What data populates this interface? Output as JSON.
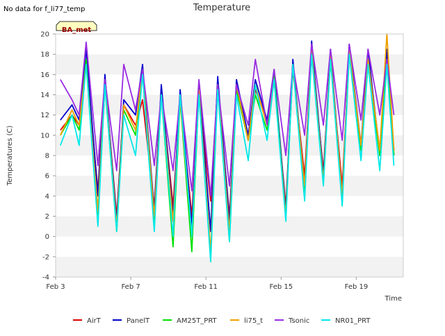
{
  "note": "No data for f_li77_temp",
  "site_tag": "BA_met",
  "chart_data": {
    "type": "line",
    "title": "Temperature",
    "xlabel": "Time",
    "ylabel": "Temperatures (C)",
    "ylim": [
      -4,
      20
    ],
    "yticks": [
      -4,
      -2,
      0,
      2,
      4,
      6,
      8,
      10,
      12,
      14,
      16,
      18,
      20
    ],
    "xlim": [
      "2023-02-03",
      "2023-02-21"
    ],
    "xticks": [
      {
        "date": "2023-02-03",
        "label": "Feb 3"
      },
      {
        "date": "2023-02-07",
        "label": "Feb 7"
      },
      {
        "date": "2023-02-11",
        "label": "Feb 11"
      },
      {
        "date": "2023-02-15",
        "label": "Feb 15"
      },
      {
        "date": "2023-02-19",
        "label": "Feb 19"
      }
    ],
    "grid": "horizontal alternating bands",
    "legend_position": "bottom",
    "x": [
      "2023-02-03 06:00",
      "2023-02-03 21:00",
      "2023-02-04 06:00",
      "2023-02-04 15:00",
      "2023-02-05 06:00",
      "2023-02-05 15:00",
      "2023-02-06 06:00",
      "2023-02-06 15:00",
      "2023-02-07 06:00",
      "2023-02-07 15:00",
      "2023-02-08 06:00",
      "2023-02-08 15:00",
      "2023-02-09 06:00",
      "2023-02-09 15:00",
      "2023-02-10 06:00",
      "2023-02-10 15:00",
      "2023-02-11 06:00",
      "2023-02-11 15:00",
      "2023-02-12 06:00",
      "2023-02-12 15:00",
      "2023-02-13 06:00",
      "2023-02-13 15:00",
      "2023-02-14 06:00",
      "2023-02-14 15:00",
      "2023-02-15 06:00",
      "2023-02-15 15:00",
      "2023-02-16 06:00",
      "2023-02-16 15:00",
      "2023-02-17 06:00",
      "2023-02-17 15:00",
      "2023-02-18 06:00",
      "2023-02-18 15:00",
      "2023-02-19 06:00",
      "2023-02-19 15:00",
      "2023-02-20 06:00",
      "2023-02-20 15:00",
      "2023-02-21 00:00"
    ],
    "series": [
      {
        "name": "AirT",
        "color": "#e00000",
        "values": [
          10.5,
          12.0,
          11.0,
          17.5,
          4.5,
          15.5,
          2.0,
          13.0,
          11.0,
          13.5,
          3.0,
          14.5,
          3.0,
          13.5,
          2.0,
          14.0,
          3.5,
          15.0,
          2.0,
          14.5,
          9.5,
          14.5,
          11.5,
          15.5,
          3.0,
          16.5,
          6.0,
          18.0,
          6.5,
          17.5,
          5.0,
          18.0,
          9.0,
          17.5,
          8.5,
          17.5,
          8.5
        ]
      },
      {
        "name": "PanelT",
        "color": "#0000cc",
        "values": [
          11.5,
          13.0,
          11.5,
          18.5,
          4.0,
          16.0,
          1.5,
          13.5,
          12.0,
          17.0,
          2.5,
          15.0,
          2.0,
          14.5,
          1.0,
          15.0,
          0.5,
          15.8,
          1.5,
          15.5,
          10.0,
          15.5,
          11.5,
          16.5,
          2.5,
          17.5,
          5.0,
          19.3,
          6.0,
          18.5,
          4.0,
          19.0,
          9.0,
          18.5,
          8.0,
          18.5,
          8.0
        ]
      },
      {
        "name": "AM25T_PRT",
        "color": "#00e000",
        "values": [
          10.0,
          12.0,
          10.5,
          17.5,
          1.5,
          15.0,
          0.5,
          12.5,
          10.0,
          16.5,
          1.5,
          14.0,
          -1.0,
          13.5,
          -1.5,
          14.5,
          -2.0,
          15.0,
          -0.5,
          14.5,
          9.5,
          14.0,
          10.5,
          16.0,
          2.0,
          17.0,
          4.0,
          18.5,
          5.5,
          17.5,
          3.5,
          18.5,
          8.5,
          17.0,
          8.0,
          17.5,
          8.0
        ]
      },
      {
        "name": "li75_t",
        "color": "#f0a000",
        "values": [
          10.0,
          12.5,
          11.0,
          17.0,
          2.5,
          15.5,
          1.0,
          13.0,
          10.5,
          16.5,
          2.0,
          14.0,
          1.5,
          13.5,
          0.0,
          14.5,
          -1.5,
          15.0,
          0.5,
          15.0,
          9.5,
          15.0,
          11.0,
          15.5,
          2.0,
          17.0,
          5.0,
          18.5,
          5.5,
          18.0,
          4.0,
          18.5,
          9.0,
          17.5,
          8.5,
          20.0,
          8.5
        ]
      },
      {
        "name": "Tsonic",
        "color": "#9a2be2",
        "values": [
          15.5,
          13.5,
          12.0,
          19.2,
          7.0,
          15.5,
          6.5,
          17.0,
          12.5,
          16.5,
          7.0,
          14.0,
          6.5,
          14.0,
          4.5,
          15.5,
          4.0,
          15.0,
          5.0,
          15.0,
          11.0,
          17.5,
          11.0,
          16.5,
          8.0,
          17.0,
          10.0,
          19.0,
          11.0,
          18.5,
          9.5,
          19.0,
          11.5,
          18.5,
          12.0,
          17.5,
          12.0
        ]
      },
      {
        "name": "NR01_PRT",
        "color": "#00e8e8",
        "values": [
          9.0,
          12.0,
          9.0,
          17.0,
          1.0,
          15.0,
          0.5,
          12.0,
          8.0,
          16.0,
          0.5,
          14.0,
          0.0,
          14.0,
          0.0,
          14.0,
          -2.5,
          14.5,
          -0.5,
          14.0,
          7.5,
          15.0,
          9.5,
          15.5,
          1.5,
          17.0,
          3.5,
          18.0,
          5.0,
          17.5,
          3.0,
          18.0,
          7.5,
          17.0,
          6.5,
          17.0,
          7.0
        ]
      }
    ]
  }
}
